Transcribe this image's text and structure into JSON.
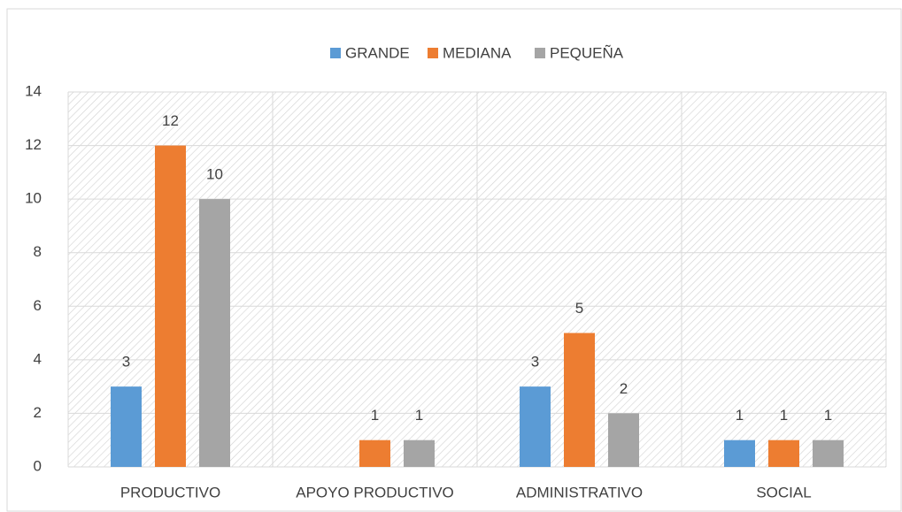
{
  "chart_data": {
    "type": "bar",
    "categories": [
      "PRODUCTIVO",
      "APOYO PRODUCTIVO",
      "ADMINISTRATIVO",
      "SOCIAL"
    ],
    "series": [
      {
        "name": "GRANDE",
        "color": "#5b9bd5",
        "values": [
          3,
          null,
          3,
          1
        ]
      },
      {
        "name": "MEDIANA",
        "color": "#ed7d31",
        "values": [
          12,
          1,
          5,
          1
        ]
      },
      {
        "name": "PEQUEÑA",
        "color": "#a5a5a5",
        "values": [
          10,
          1,
          2,
          1
        ]
      }
    ],
    "ylim": [
      0,
      14
    ],
    "yticks": [
      0,
      2,
      4,
      6,
      8,
      10,
      12,
      14
    ],
    "grid": true,
    "legend": "top"
  }
}
